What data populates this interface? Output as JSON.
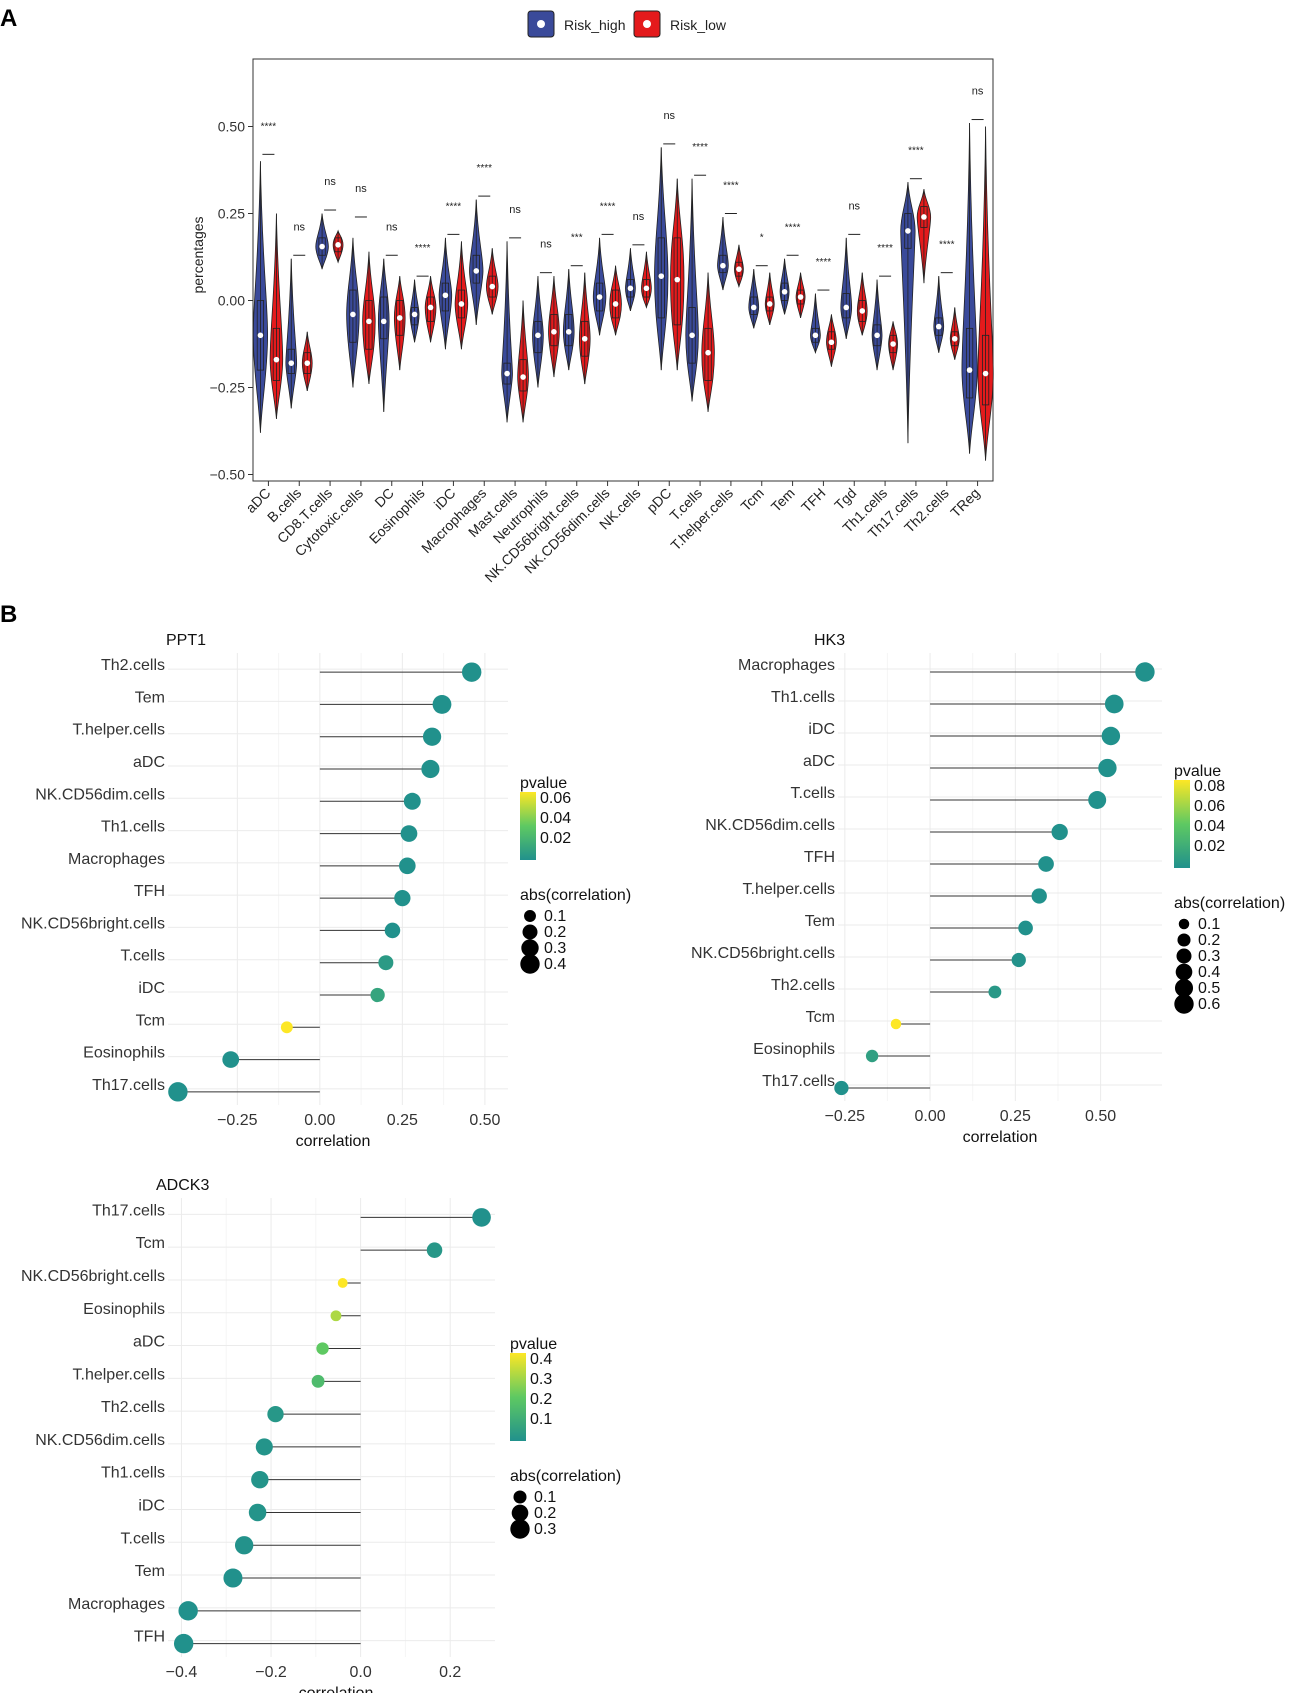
{
  "panel_a_letter": "A",
  "panel_b_letter": "B",
  "legend_a": [
    {
      "label": "Risk_high",
      "color": "#3a4a9a"
    },
    {
      "label": "Risk_low",
      "color": "#e41a1c"
    }
  ],
  "chart_data": [
    {
      "type": "violin",
      "title": "",
      "ylabel": "percentages",
      "ylim": [
        -0.5,
        0.68
      ],
      "yticks": [
        {
          "v": -0.5,
          "label": "−0.50"
        },
        {
          "v": -0.25,
          "label": "−0.25"
        },
        {
          "v": 0,
          "label": "0.00"
        },
        {
          "v": 0.25,
          "label": "0.25"
        },
        {
          "v": 0.5,
          "label": "0.50"
        }
      ],
      "series": [
        {
          "name": "Risk_high",
          "color": "#3a4a9a"
        },
        {
          "name": "Risk_low",
          "color": "#e41a1c"
        }
      ],
      "groups": [
        {
          "cat": "aDC",
          "sig": "****",
          "bar": 0.42,
          "high": {
            "min": -0.38,
            "q1": -0.2,
            "med": -0.1,
            "q3": 0.0,
            "max": 0.4,
            "w": 0.8
          },
          "low": {
            "min": -0.34,
            "q1": -0.23,
            "med": -0.17,
            "q3": -0.08,
            "max": 0.25,
            "w": 0.7
          }
        },
        {
          "cat": "B.cells",
          "sig": "ns",
          "bar": 0.13,
          "high": {
            "min": -0.31,
            "q1": -0.21,
            "med": -0.18,
            "q3": -0.14,
            "max": 0.12,
            "w": 0.6
          },
          "low": {
            "min": -0.26,
            "q1": -0.21,
            "med": -0.18,
            "q3": -0.15,
            "max": -0.09,
            "w": 0.55
          }
        },
        {
          "cat": "CD8.T.cells",
          "sig": "ns",
          "bar": 0.26,
          "high": {
            "min": 0.09,
            "q1": 0.13,
            "med": 0.155,
            "q3": 0.18,
            "max": 0.25,
            "w": 0.7
          },
          "low": {
            "min": 0.11,
            "q1": 0.14,
            "med": 0.16,
            "q3": 0.18,
            "max": 0.2,
            "w": 0.55
          }
        },
        {
          "cat": "Cytotoxic.cells",
          "sig": "ns",
          "bar": 0.24,
          "high": {
            "min": -0.25,
            "q1": -0.12,
            "med": -0.04,
            "q3": 0.03,
            "max": 0.18,
            "w": 0.7
          },
          "low": {
            "min": -0.24,
            "q1": -0.14,
            "med": -0.06,
            "q3": 0.0,
            "max": 0.14,
            "w": 0.7
          }
        },
        {
          "cat": "DC",
          "sig": "ns",
          "bar": 0.13,
          "high": {
            "min": -0.32,
            "q1": -0.11,
            "med": -0.06,
            "q3": 0.01,
            "max": 0.12,
            "w": 0.6
          },
          "low": {
            "min": -0.2,
            "q1": -0.1,
            "med": -0.05,
            "q3": 0.0,
            "max": 0.07,
            "w": 0.6
          }
        },
        {
          "cat": "Eosinophils",
          "sig": "****",
          "bar": 0.07,
          "high": {
            "min": -0.12,
            "q1": -0.07,
            "med": -0.04,
            "q3": -0.02,
            "max": 0.06,
            "w": 0.5
          },
          "low": {
            "min": -0.12,
            "q1": -0.06,
            "med": -0.02,
            "q3": 0.01,
            "max": 0.07,
            "w": 0.6
          }
        },
        {
          "cat": "iDC",
          "sig": "****",
          "bar": 0.19,
          "high": {
            "min": -0.14,
            "q1": -0.03,
            "med": 0.015,
            "q3": 0.05,
            "max": 0.18,
            "w": 0.7
          },
          "low": {
            "min": -0.14,
            "q1": -0.05,
            "med": -0.01,
            "q3": 0.03,
            "max": 0.17,
            "w": 0.7
          }
        },
        {
          "cat": "Macrophages",
          "sig": "****",
          "bar": 0.3,
          "high": {
            "min": -0.07,
            "q1": 0.05,
            "med": 0.085,
            "q3": 0.13,
            "max": 0.29,
            "w": 0.75
          },
          "low": {
            "min": -0.04,
            "q1": 0.01,
            "med": 0.04,
            "q3": 0.07,
            "max": 0.15,
            "w": 0.65
          }
        },
        {
          "cat": "Mast.cells",
          "sig": "ns",
          "bar": 0.18,
          "high": {
            "min": -0.35,
            "q1": -0.24,
            "med": -0.21,
            "q3": -0.18,
            "max": 0.17,
            "w": 0.6
          },
          "low": {
            "min": -0.35,
            "q1": -0.26,
            "med": -0.22,
            "q3": -0.17,
            "max": 0.0,
            "w": 0.6
          }
        },
        {
          "cat": "Neutrophils",
          "sig": "ns",
          "bar": 0.08,
          "high": {
            "min": -0.25,
            "q1": -0.15,
            "med": -0.1,
            "q3": -0.06,
            "max": 0.07,
            "w": 0.6
          },
          "low": {
            "min": -0.22,
            "q1": -0.13,
            "med": -0.09,
            "q3": -0.04,
            "max": 0.07,
            "w": 0.6
          }
        },
        {
          "cat": "NK.CD56bright.cells",
          "sig": "***",
          "bar": 0.1,
          "high": {
            "min": -0.2,
            "q1": -0.13,
            "med": -0.09,
            "q3": -0.04,
            "max": 0.09,
            "w": 0.6
          },
          "low": {
            "min": -0.24,
            "q1": -0.16,
            "med": -0.11,
            "q3": -0.06,
            "max": 0.08,
            "w": 0.6
          }
        },
        {
          "cat": "NK.CD56dim.cells",
          "sig": "****",
          "bar": 0.19,
          "high": {
            "min": -0.1,
            "q1": -0.03,
            "med": 0.01,
            "q3": 0.05,
            "max": 0.18,
            "w": 0.7
          },
          "low": {
            "min": -0.1,
            "q1": -0.05,
            "med": -0.01,
            "q3": 0.03,
            "max": 0.1,
            "w": 0.65
          }
        },
        {
          "cat": "NK.cells",
          "sig": "ns",
          "bar": 0.16,
          "high": {
            "min": -0.03,
            "q1": 0.01,
            "med": 0.035,
            "q3": 0.06,
            "max": 0.15,
            "w": 0.55
          },
          "low": {
            "min": -0.02,
            "q1": 0.01,
            "med": 0.035,
            "q3": 0.06,
            "max": 0.14,
            "w": 0.55
          }
        },
        {
          "cat": "pDC",
          "sig": "ns",
          "bar": 0.45,
          "high": {
            "min": -0.2,
            "q1": -0.05,
            "med": 0.07,
            "q3": 0.18,
            "max": 0.44,
            "w": 0.75
          },
          "low": {
            "min": -0.2,
            "q1": -0.07,
            "med": 0.06,
            "q3": 0.18,
            "max": 0.35,
            "w": 0.75
          }
        },
        {
          "cat": "T.cells",
          "sig": "****",
          "bar": 0.36,
          "high": {
            "min": -0.29,
            "q1": -0.18,
            "med": -0.1,
            "q3": -0.02,
            "max": 0.35,
            "w": 0.7
          },
          "low": {
            "min": -0.32,
            "q1": -0.23,
            "med": -0.15,
            "q3": -0.08,
            "max": 0.08,
            "w": 0.7
          }
        },
        {
          "cat": "T.helper.cells",
          "sig": "****",
          "bar": 0.25,
          "high": {
            "min": 0.03,
            "q1": 0.08,
            "med": 0.1,
            "q3": 0.13,
            "max": 0.24,
            "w": 0.6
          },
          "low": {
            "min": 0.04,
            "q1": 0.07,
            "med": 0.09,
            "q3": 0.11,
            "max": 0.16,
            "w": 0.5
          }
        },
        {
          "cat": "Tcm",
          "sig": "*",
          "bar": 0.1,
          "high": {
            "min": -0.08,
            "q1": -0.04,
            "med": -0.02,
            "q3": 0.01,
            "max": 0.09,
            "w": 0.55
          },
          "low": {
            "min": -0.07,
            "q1": -0.03,
            "med": -0.01,
            "q3": 0.01,
            "max": 0.08,
            "w": 0.5
          }
        },
        {
          "cat": "Tem",
          "sig": "****",
          "bar": 0.13,
          "high": {
            "min": -0.04,
            "q1": 0.0,
            "med": 0.025,
            "q3": 0.05,
            "max": 0.12,
            "w": 0.5
          },
          "low": {
            "min": -0.05,
            "q1": -0.01,
            "med": 0.01,
            "q3": 0.03,
            "max": 0.08,
            "w": 0.5
          }
        },
        {
          "cat": "TFH",
          "sig": "****",
          "bar": 0.03,
          "high": {
            "min": -0.15,
            "q1": -0.12,
            "med": -0.1,
            "q3": -0.08,
            "max": 0.02,
            "w": 0.55
          },
          "low": {
            "min": -0.19,
            "q1": -0.14,
            "med": -0.12,
            "q3": -0.09,
            "max": -0.04,
            "w": 0.55
          }
        },
        {
          "cat": "Tgd",
          "sig": "ns",
          "bar": 0.19,
          "high": {
            "min": -0.11,
            "q1": -0.05,
            "med": -0.02,
            "q3": 0.02,
            "max": 0.18,
            "w": 0.6
          },
          "low": {
            "min": -0.1,
            "q1": -0.06,
            "med": -0.03,
            "q3": 0.0,
            "max": 0.08,
            "w": 0.55
          }
        },
        {
          "cat": "Th1.cells",
          "sig": "****",
          "bar": 0.07,
          "high": {
            "min": -0.2,
            "q1": -0.13,
            "med": -0.1,
            "q3": -0.07,
            "max": 0.06,
            "w": 0.55
          },
          "low": {
            "min": -0.2,
            "q1": -0.15,
            "med": -0.125,
            "q3": -0.1,
            "max": -0.06,
            "w": 0.5
          }
        },
        {
          "cat": "Th17.cells",
          "sig": "****",
          "bar": 0.35,
          "high": {
            "min": -0.41,
            "q1": 0.15,
            "med": 0.2,
            "q3": 0.25,
            "max": 0.34,
            "w": 0.8
          },
          "low": {
            "min": 0.05,
            "q1": 0.21,
            "med": 0.24,
            "q3": 0.27,
            "max": 0.32,
            "w": 0.75
          }
        },
        {
          "cat": "Th2.cells",
          "sig": "****",
          "bar": 0.08,
          "high": {
            "min": -0.15,
            "q1": -0.1,
            "med": -0.075,
            "q3": -0.05,
            "max": 0.07,
            "w": 0.55
          },
          "low": {
            "min": -0.17,
            "q1": -0.13,
            "med": -0.11,
            "q3": -0.09,
            "max": -0.02,
            "w": 0.5
          }
        },
        {
          "cat": "TReg",
          "sig": "ns",
          "bar": 0.52,
          "high": {
            "min": -0.44,
            "q1": -0.28,
            "med": -0.2,
            "q3": -0.08,
            "max": 0.51,
            "w": 0.85
          },
          "low": {
            "min": -0.46,
            "q1": -0.3,
            "med": -0.21,
            "q3": -0.1,
            "max": 0.5,
            "w": 0.85
          }
        }
      ]
    },
    {
      "type": "lollipop",
      "title": "PPT1",
      "xlabel": "correlation",
      "xlim": [
        -0.46,
        0.57
      ],
      "xticks": [
        {
          "v": -0.25,
          "label": "−0.25"
        },
        {
          "v": 0,
          "label": "0.00"
        },
        {
          "v": 0.25,
          "label": "0.25"
        },
        {
          "v": 0.5,
          "label": "0.50"
        }
      ],
      "pvalue_legend": [
        "0.06",
        "0.04",
        "0.02"
      ],
      "size_legend": [
        "0.1",
        "0.2",
        "0.3",
        "0.4"
      ],
      "items": [
        {
          "label": "Th2.cells",
          "r": 0.46,
          "p": 0.0
        },
        {
          "label": "Tem",
          "r": 0.37,
          "p": 0.0
        },
        {
          "label": "T.helper.cells",
          "r": 0.34,
          "p": 0.0
        },
        {
          "label": "aDC",
          "r": 0.335,
          "p": 0.0
        },
        {
          "label": "NK.CD56dim.cells",
          "r": 0.28,
          "p": 0.0
        },
        {
          "label": "Th1.cells",
          "r": 0.27,
          "p": 0.0
        },
        {
          "label": "Macrophages",
          "r": 0.265,
          "p": 0.0
        },
        {
          "label": "TFH",
          "r": 0.25,
          "p": 0.0
        },
        {
          "label": "NK.CD56bright.cells",
          "r": 0.22,
          "p": 0.0
        },
        {
          "label": "T.cells",
          "r": 0.2,
          "p": 0.005
        },
        {
          "label": "iDC",
          "r": 0.175,
          "p": 0.01
        },
        {
          "label": "Tcm",
          "r": -0.1,
          "p": 0.065
        },
        {
          "label": "Eosinophils",
          "r": -0.27,
          "p": 0.0
        },
        {
          "label": "Th17.cells",
          "r": -0.43,
          "p": 0.0
        }
      ]
    },
    {
      "type": "lollipop",
      "title": "HK3",
      "xlabel": "correlation",
      "xlim": [
        -0.27,
        0.68
      ],
      "xticks": [
        {
          "v": -0.25,
          "label": "−0.25"
        },
        {
          "v": 0,
          "label": "0.00"
        },
        {
          "v": 0.25,
          "label": "0.25"
        },
        {
          "v": 0.5,
          "label": "0.50"
        }
      ],
      "pvalue_legend": [
        "0.08",
        "0.06",
        "0.04",
        "0.02"
      ],
      "size_legend": [
        "0.1",
        "0.2",
        "0.3",
        "0.4",
        "0.5",
        "0.6"
      ],
      "items": [
        {
          "label": "Macrophages",
          "r": 0.63,
          "p": 0.0
        },
        {
          "label": "Th1.cells",
          "r": 0.54,
          "p": 0.0
        },
        {
          "label": "iDC",
          "r": 0.53,
          "p": 0.0
        },
        {
          "label": "aDC",
          "r": 0.52,
          "p": 0.0
        },
        {
          "label": "T.cells",
          "r": 0.49,
          "p": 0.0
        },
        {
          "label": "NK.CD56dim.cells",
          "r": 0.38,
          "p": 0.0
        },
        {
          "label": "TFH",
          "r": 0.34,
          "p": 0.0
        },
        {
          "label": "T.helper.cells",
          "r": 0.32,
          "p": 0.0
        },
        {
          "label": "Tem",
          "r": 0.28,
          "p": 0.0
        },
        {
          "label": "NK.CD56bright.cells",
          "r": 0.26,
          "p": 0.001
        },
        {
          "label": "Th2.cells",
          "r": 0.19,
          "p": 0.005
        },
        {
          "label": "Tcm",
          "r": -0.1,
          "p": 0.085
        },
        {
          "label": "Eosinophils",
          "r": -0.17,
          "p": 0.01
        },
        {
          "label": "Th17.cells",
          "r": -0.26,
          "p": 0.0
        }
      ]
    },
    {
      "type": "lollipop",
      "title": "ADCK3",
      "xlabel": "correlation",
      "xlim": [
        -0.43,
        0.3
      ],
      "xticks": [
        {
          "v": -0.4,
          "label": "−0.4"
        },
        {
          "v": -0.2,
          "label": "−0.2"
        },
        {
          "v": 0,
          "label": "0.0"
        },
        {
          "v": 0.2,
          "label": "0.2"
        }
      ],
      "pvalue_legend": [
        "0.4",
        "0.3",
        "0.2",
        "0.1"
      ],
      "size_legend": [
        "0.1",
        "0.2",
        "0.3"
      ],
      "items": [
        {
          "label": "Th17.cells",
          "r": 0.27,
          "p": 0.0
        },
        {
          "label": "Tcm",
          "r": 0.165,
          "p": 0.02
        },
        {
          "label": "NK.CD56bright.cells",
          "r": -0.04,
          "p": 0.45
        },
        {
          "label": "Eosinophils",
          "r": -0.055,
          "p": 0.3
        },
        {
          "label": "aDC",
          "r": -0.085,
          "p": 0.2
        },
        {
          "label": "T.helper.cells",
          "r": -0.095,
          "p": 0.15
        },
        {
          "label": "Th2.cells",
          "r": -0.19,
          "p": 0.02
        },
        {
          "label": "NK.CD56dim.cells",
          "r": -0.215,
          "p": 0.01
        },
        {
          "label": "Th1.cells",
          "r": -0.225,
          "p": 0.01
        },
        {
          "label": "iDC",
          "r": -0.23,
          "p": 0.01
        },
        {
          "label": "T.cells",
          "r": -0.26,
          "p": 0.005
        },
        {
          "label": "Tem",
          "r": -0.285,
          "p": 0.001
        },
        {
          "label": "Macrophages",
          "r": -0.385,
          "p": 0.0
        },
        {
          "label": "TFH",
          "r": -0.395,
          "p": 0.0
        }
      ]
    }
  ],
  "legend_titles": {
    "pvalue": "pvalue",
    "size": "abs(correlation)"
  }
}
